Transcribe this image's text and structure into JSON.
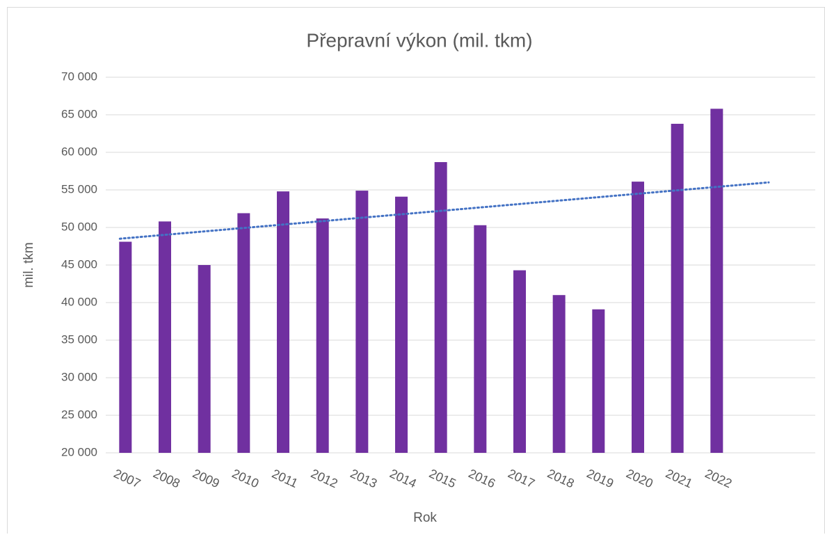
{
  "chart_data": {
    "type": "bar",
    "title": "Přepravní výkon (mil. tkm)",
    "x_label": "Rok",
    "y_label": "mil. tkm",
    "categories": [
      "2007",
      "2008",
      "2009",
      "2010",
      "2011",
      "2012",
      "2013",
      "2014",
      "2015",
      "2016",
      "2017",
      "2018",
      "2019",
      "2020",
      "2021",
      "2022",
      null,
      null
    ],
    "values": [
      48100,
      50800,
      45000,
      51900,
      54800,
      51200,
      54900,
      54100,
      58700,
      50300,
      44300,
      41000,
      39100,
      56100,
      63800,
      65800,
      null,
      null
    ],
    "color": "#7030a0",
    "trend": {
      "color": "#4472c4",
      "values": [
        48500,
        56000
      ]
    },
    "ylim": [
      20000,
      70000
    ],
    "yticks": [
      {
        "value": 20000,
        "label": "20 000"
      },
      {
        "value": 25000,
        "label": "25 000"
      },
      {
        "value": 30000,
        "label": "30 000"
      },
      {
        "value": 35000,
        "label": "35 000"
      },
      {
        "value": 40000,
        "label": "40 000"
      },
      {
        "value": 45000,
        "label": "45 000"
      },
      {
        "value": 50000,
        "label": "50 000"
      },
      {
        "value": 55000,
        "label": "55 000"
      },
      {
        "value": 60000,
        "label": "60 000"
      },
      {
        "value": 65000,
        "label": "65 000"
      },
      {
        "value": 70000,
        "label": "70 000"
      }
    ],
    "grid": true
  }
}
